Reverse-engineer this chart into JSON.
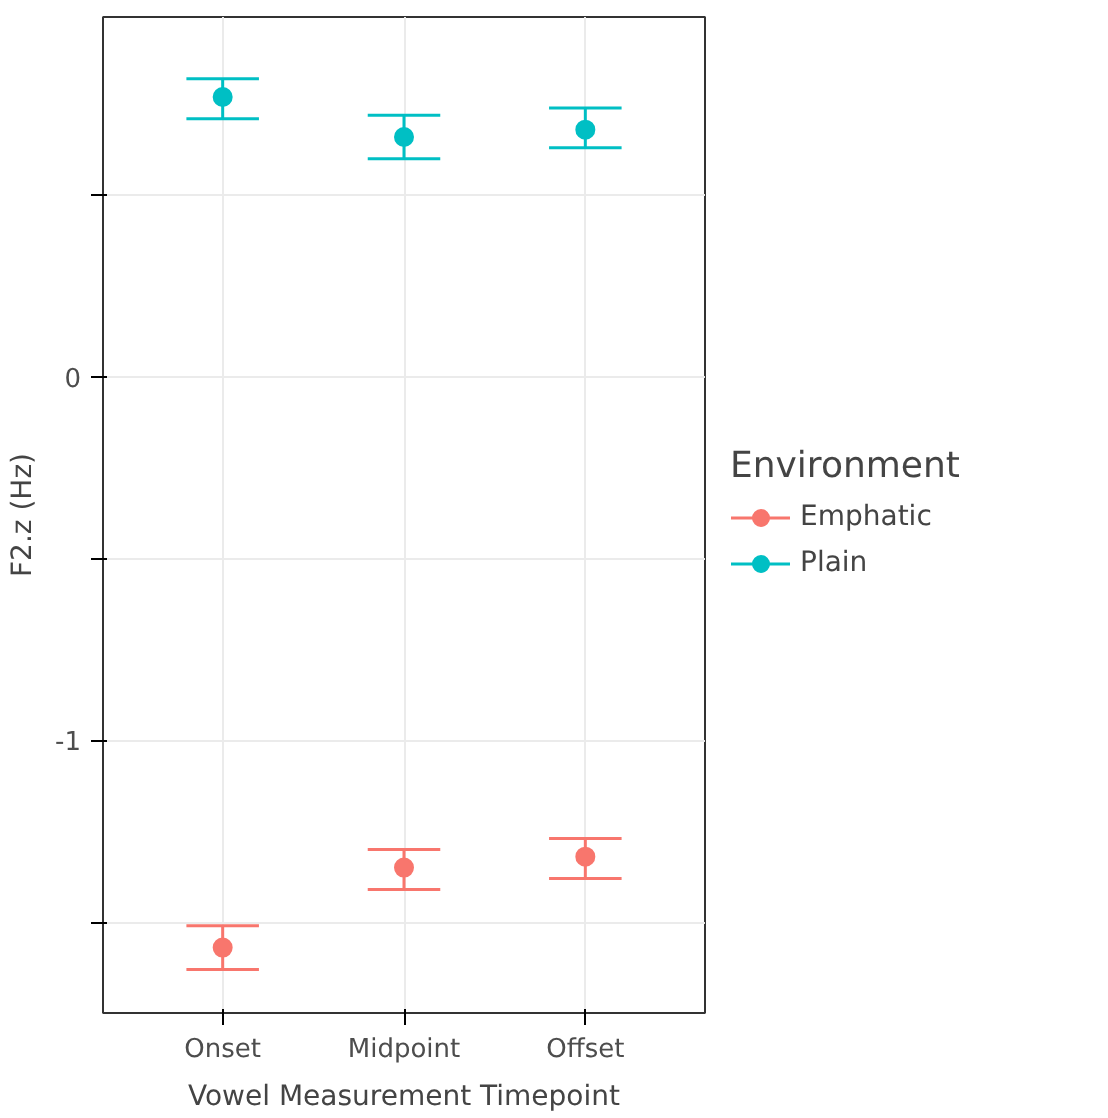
{
  "chart_data": {
    "type": "scatter",
    "xlabel": "Vowel Measurement Timepoint",
    "ylabel": "F2.z (Hz)",
    "legend_title": "Environment",
    "categories": [
      "Onset",
      "Midpoint",
      "Offset"
    ],
    "series": [
      {
        "name": "Emphatic",
        "color": "#f8766d",
        "values": [
          -1.57,
          -1.35,
          -1.32
        ],
        "errors": [
          [
            -1.63,
            -1.51
          ],
          [
            -1.41,
            -1.3
          ],
          [
            -1.38,
            -1.27
          ]
        ]
      },
      {
        "name": "Plain",
        "color": "#00bfc4",
        "values": [
          0.77,
          0.66,
          0.68
        ],
        "errors": [
          [
            0.71,
            0.82
          ],
          [
            0.6,
            0.72
          ],
          [
            0.63,
            0.74
          ]
        ]
      }
    ],
    "ylim": [
      -1.75,
      0.99
    ],
    "yticks": [
      {
        "value": -1.5,
        "label": null
      },
      -1,
      {
        "value": -0.5,
        "label": null
      },
      0,
      {
        "value": 0.5,
        "label": null
      }
    ],
    "grid": true,
    "legend": "right",
    "marker": "circle"
  }
}
